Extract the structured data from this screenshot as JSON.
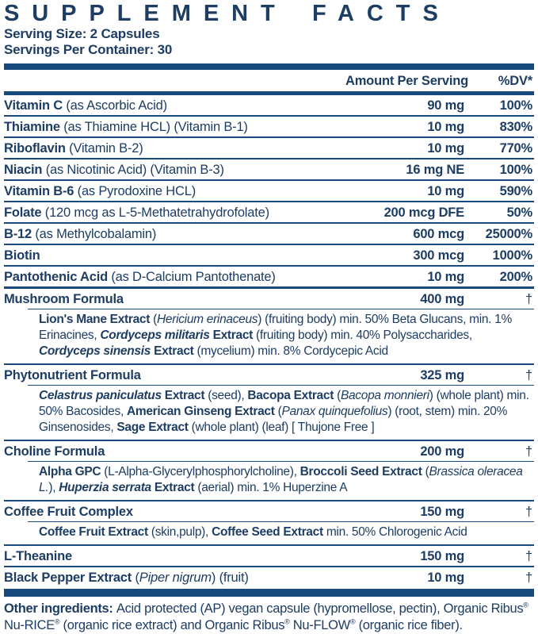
{
  "colors": {
    "text": "#1d3d63",
    "rule": "#17497d"
  },
  "header": {
    "title": "SUPPLEMENT FACTS",
    "serving_size": "Serving Size: 2 Capsules",
    "servings_per_container": "Servings Per Container: 30"
  },
  "table": {
    "col_amount": "Amount Per Serving",
    "col_dv": "%DV*",
    "rows": [
      {
        "type": "nutrient",
        "sep": "thin",
        "name": [
          {
            "t": "Vitamin C ",
            "b": true
          },
          {
            "t": "(as Ascorbic Acid)"
          }
        ],
        "amount": "90 mg",
        "dv": "100%"
      },
      {
        "type": "nutrient",
        "sep": "thin",
        "name": [
          {
            "t": "Thiamine ",
            "b": true
          },
          {
            "t": "(as Thiamine HCL) (Vitamin B-1)"
          }
        ],
        "amount": "10 mg",
        "dv": "830%"
      },
      {
        "type": "nutrient",
        "sep": "thin",
        "name": [
          {
            "t": "Riboflavin ",
            "b": true
          },
          {
            "t": "(Vitamin B-2)"
          }
        ],
        "amount": "10 mg",
        "dv": "770%"
      },
      {
        "type": "nutrient",
        "sep": "thin",
        "name": [
          {
            "t": "Niacin ",
            "b": true
          },
          {
            "t": "(as Nicotinic Acid) (Vitamin B-3)"
          }
        ],
        "amount": "16 mg NE",
        "dv": "100%"
      },
      {
        "type": "nutrient",
        "sep": "thin",
        "name": [
          {
            "t": "Vitamin B-6 ",
            "b": true
          },
          {
            "t": "(as Pyrodoxine HCL)"
          }
        ],
        "amount": "10 mg",
        "dv": "590%"
      },
      {
        "type": "nutrient",
        "sep": "thin",
        "name": [
          {
            "t": "Folate ",
            "b": true
          },
          {
            "t": "(120 mcg as L-5-Methatetrahydrofolate)"
          }
        ],
        "amount": "200 mcg DFE",
        "dv": "50%"
      },
      {
        "type": "nutrient",
        "sep": "thin",
        "name": [
          {
            "t": "B-12 ",
            "b": true
          },
          {
            "t": "(as Methylcobalamin)"
          }
        ],
        "amount": "600 mcg",
        "dv": "25000%"
      },
      {
        "type": "nutrient",
        "sep": "thin",
        "name": [
          {
            "t": "Biotin",
            "b": true
          }
        ],
        "amount": "300 mcg",
        "dv": "1000%"
      },
      {
        "type": "nutrient",
        "sep": "medium",
        "name": [
          {
            "t": "Pantothenic Acid ",
            "b": true
          },
          {
            "t": "(as D-Calcium Pantothenate)"
          }
        ],
        "amount": "10 mg",
        "dv": "200%"
      },
      {
        "type": "section",
        "sep": "thin",
        "name": [
          {
            "t": "Mushroom Formula",
            "b": true
          }
        ],
        "amount": "400 mg",
        "dv": "†",
        "desc": [
          {
            "t": "Lion's Mane Extract ",
            "b": true
          },
          {
            "t": "("
          },
          {
            "t": "Hericium erinaceus",
            "i": true
          },
          {
            "t": ") (fruiting body) min. 50% Beta Glucans, min. 1% Erinacines, "
          },
          {
            "t": "Cordyceps militaris",
            "b": true,
            "i": true
          },
          {
            "t": " Extract ",
            "b": true
          },
          {
            "t": "(fruiting body) min. 40% Polysaccharides, "
          },
          {
            "t": "Cordyceps sinensis",
            "b": true,
            "i": true
          },
          {
            "t": " Extract ",
            "b": true
          },
          {
            "t": "(mycelium) min. 8% Cordycepic Acid"
          }
        ]
      },
      {
        "type": "section",
        "sep": "thin",
        "name": [
          {
            "t": "Phytonutrient Formula",
            "b": true
          }
        ],
        "amount": "325 mg",
        "dv": "†",
        "desc": [
          {
            "t": "Celastrus paniculatus",
            "b": true,
            "i": true
          },
          {
            "t": " Extract ",
            "b": true
          },
          {
            "t": "(seed), "
          },
          {
            "t": "Bacopa Extract ",
            "b": true
          },
          {
            "t": "("
          },
          {
            "t": "Bacopa monnieri",
            "i": true
          },
          {
            "t": ") (whole plant) min. 50% Bacosides, "
          },
          {
            "t": "American Ginseng Extract ",
            "b": true
          },
          {
            "t": "("
          },
          {
            "t": "Panax quinquefolius",
            "i": true
          },
          {
            "t": ") (root, stem) min. 20% Ginsenosides, "
          },
          {
            "t": "Sage Extract ",
            "b": true
          },
          {
            "t": "(whole plant) (leaf) [ Thujone Free ]"
          }
        ]
      },
      {
        "type": "section",
        "sep": "thin",
        "name": [
          {
            "t": "Choline Formula",
            "b": true
          }
        ],
        "amount": "200 mg",
        "dv": "†",
        "desc": [
          {
            "t": "Alpha GPC ",
            "b": true
          },
          {
            "t": "(L-Alpha-Glycerylphosphorylcholine), "
          },
          {
            "t": "Broccoli Seed Extract ",
            "b": true
          },
          {
            "t": "("
          },
          {
            "t": "Brassica oleracea L.",
            "i": true
          },
          {
            "t": "), "
          },
          {
            "t": "Huperzia serrata",
            "b": true,
            "i": true
          },
          {
            "t": " Extract ",
            "b": true
          },
          {
            "t": "(aerial) min. 1% Huperzine A"
          }
        ]
      },
      {
        "type": "section",
        "sep": "thin",
        "name": [
          {
            "t": "Coffee Fruit Complex",
            "b": true
          }
        ],
        "amount": "150 mg",
        "dv": "†",
        "desc": [
          {
            "t": "Coffee Fruit Extract ",
            "b": true
          },
          {
            "t": "(skin,pulp), "
          },
          {
            "t": "Coffee Seed Extract ",
            "b": true
          },
          {
            "t": "min. 50% Chlorogenic Acid"
          }
        ]
      },
      {
        "type": "nutrient",
        "sep": "thin",
        "name": [
          {
            "t": "L-Theanine",
            "b": true
          }
        ],
        "amount": "150 mg",
        "dv": "†"
      },
      {
        "type": "nutrient",
        "sep": "none",
        "name": [
          {
            "t": "Black Pepper Extract ",
            "b": true
          },
          {
            "t": "("
          },
          {
            "t": "Piper nigrum",
            "i": true
          },
          {
            "t": ") (fruit)"
          }
        ],
        "amount": "10 mg",
        "dv": "†"
      }
    ]
  },
  "footer": {
    "other_ingredients": [
      {
        "t": "Other ingredients: ",
        "b": true
      },
      {
        "t": "Acid protected (AP) vegan capsule (hypromellose, pectin), Organic Ribus"
      },
      {
        "t": "®",
        "sup": true
      },
      {
        "t": " Nu-RICE"
      },
      {
        "t": "®",
        "sup": true
      },
      {
        "t": " (organic rice extract) and Organic Ribus"
      },
      {
        "t": "®",
        "sup": true
      },
      {
        "t": " Nu-FLOW"
      },
      {
        "t": "®",
        "sup": true
      },
      {
        "t": " (organic rice fiber)."
      }
    ]
  }
}
